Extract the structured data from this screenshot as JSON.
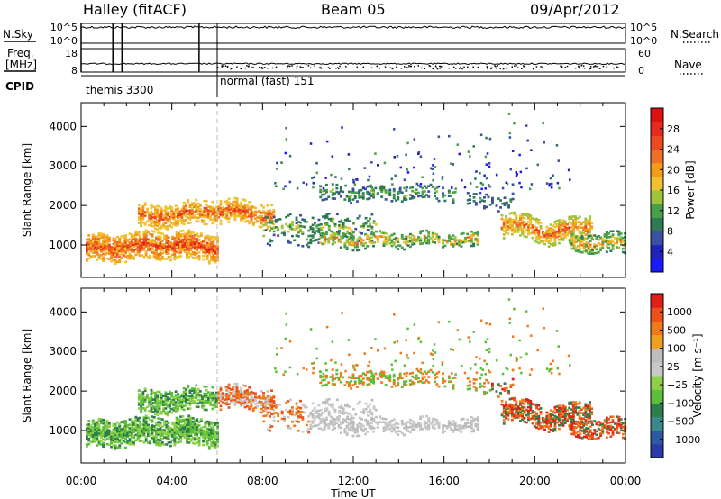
{
  "header": {
    "station": "Halley (fitACF)",
    "beam": "Beam 05",
    "date": "09/Apr/2012"
  },
  "strips": {
    "nsky": {
      "label": "N.Sky",
      "right_label": "N.Search",
      "left_ticks": [
        "10^5",
        "10^0"
      ],
      "right_ticks": [
        "10^5",
        "10^0"
      ]
    },
    "freq": {
      "label_line1": "Freq.",
      "label_line2": "[MHz]",
      "right_label": "Nave",
      "left_ticks": [
        "18",
        "8"
      ],
      "right_ticks": [
        "60",
        "0"
      ]
    },
    "cpid": {
      "label": "CPID",
      "modes": [
        {
          "text": "themis 3300",
          "start_hour": 0.0
        },
        {
          "text": "normal (fast) 151",
          "start_hour": 6.0
        }
      ],
      "transitions": [
        0.0,
        1.4,
        1.8,
        5.2,
        6.0
      ]
    }
  },
  "chart_data": [
    {
      "type": "heatmap",
      "name": "power",
      "ylabel": "Slant Range [km]",
      "ylim": [
        180,
        4600
      ],
      "yticks": [
        1000,
        2000,
        3000,
        4000
      ],
      "xlim": [
        0,
        24
      ],
      "colorbar": {
        "label": "Power [dB]",
        "ticks": [
          "28",
          "24",
          "20",
          "16",
          "12",
          "8",
          "4"
        ],
        "colors": [
          "#1a1aff",
          "#2222b8",
          "#3a50a0",
          "#2e7a55",
          "#4aa048",
          "#9fc43a",
          "#f0c030",
          "#f39c1a",
          "#f07028",
          "#ee4a22",
          "#e82a1e",
          "#dd1111"
        ]
      }
    },
    {
      "type": "heatmap",
      "name": "velocity",
      "ylabel": "Slant Range [km]",
      "ylim": [
        180,
        4600
      ],
      "yticks": [
        1000,
        2000,
        3000,
        4000
      ],
      "xlim": [
        0,
        24
      ],
      "colorbar": {
        "label": "Velocity [m s⁻¹]",
        "ticks": [
          "1000",
          "500",
          "100",
          "25",
          "−25",
          "−100",
          "−500",
          "−1000"
        ],
        "colors": [
          "#2a3aa8",
          "#2c5aa0",
          "#3a8a8a",
          "#2e7d4d",
          "#5cbf3a",
          "#8fd04a",
          "#c8c8c8",
          "#bdbdbd",
          "#f0a020",
          "#f07a1a",
          "#ee4e1a",
          "#e02018"
        ]
      }
    }
  ],
  "xaxis": {
    "label": "Time UT",
    "ticks": [
      "00:00",
      "04:00",
      "08:00",
      "12:00",
      "16:00",
      "20:00",
      "00:00"
    ]
  }
}
